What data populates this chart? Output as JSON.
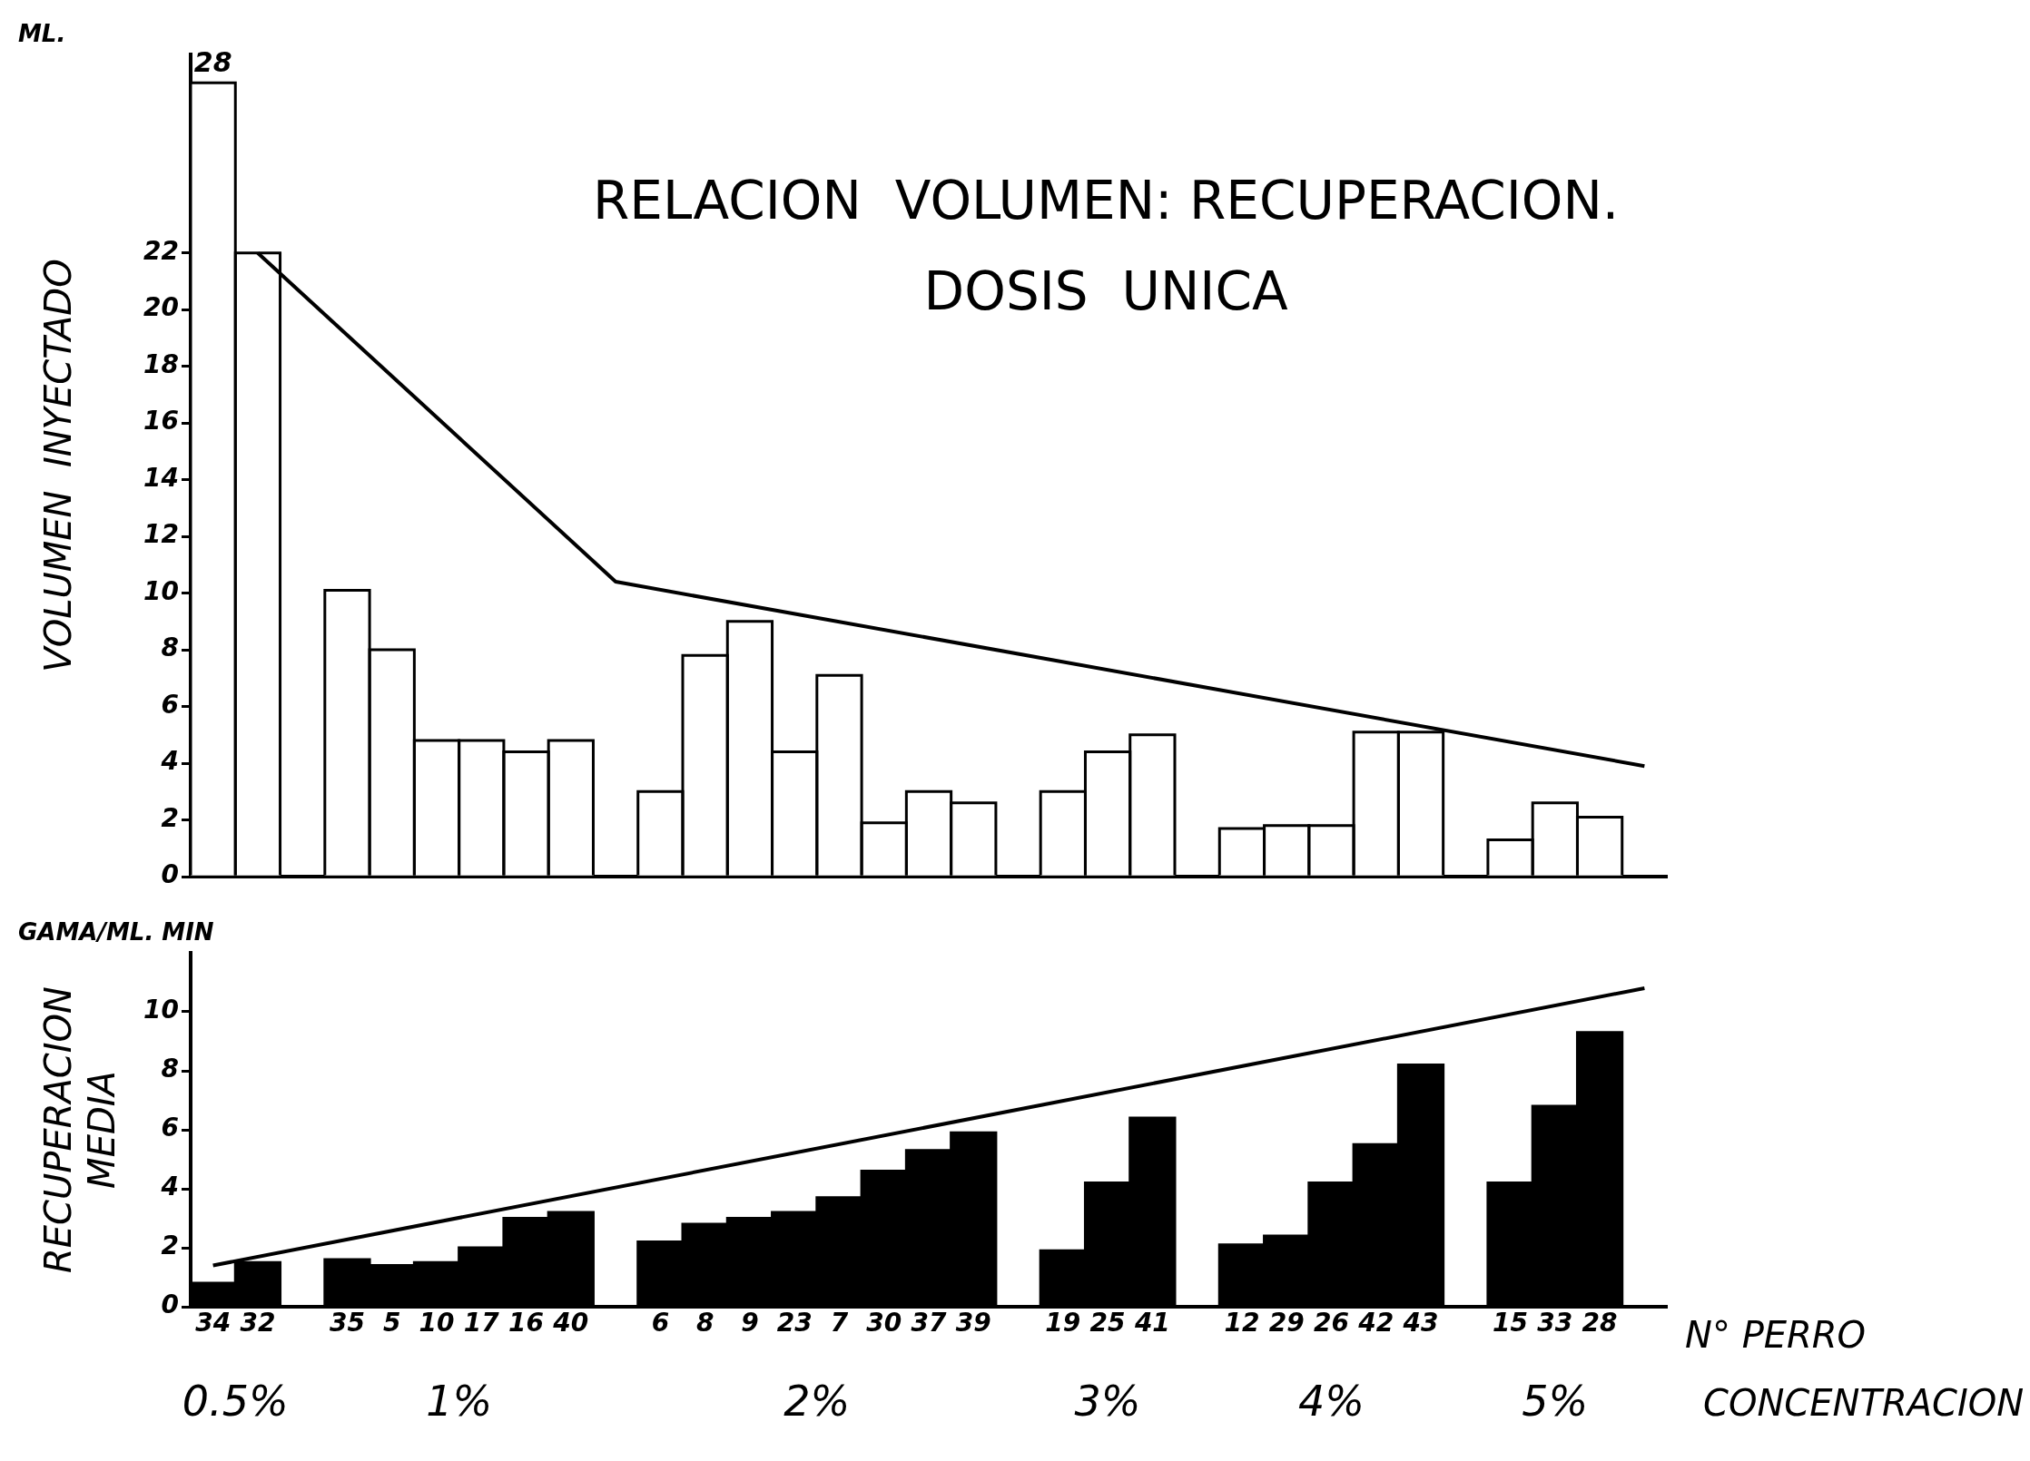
{
  "chart_data": [
    {
      "type": "bar",
      "title": "RELACION  VOLUMEN: RECUPERACION.",
      "subtitle": "DOSIS  UNICA",
      "ylabel": "VOLUMEN  INYECTADO",
      "categories": [
        "34",
        "32",
        null,
        "35",
        "5",
        "10",
        "17",
        "16",
        "40",
        null,
        "6",
        "8",
        "9",
        "23",
        "7",
        "30",
        "37",
        "39",
        null,
        "19",
        "25",
        "41",
        null,
        "12",
        "29",
        "26",
        "42",
        "43",
        null,
        "15",
        "33",
        "28",
        null
      ],
      "series": [
        {
          "color": "#ffffff",
          "values": [
            28,
            22,
            null,
            10.1,
            8,
            4.8,
            4.8,
            4.4,
            4.8,
            null,
            3,
            7.8,
            9,
            4.4,
            7.1,
            1.9,
            3,
            2.6,
            null,
            3,
            4.4,
            5,
            null,
            1.7,
            1.8,
            1.8,
            5.1,
            5.1,
            null,
            1.3,
            2.6,
            2.1,
            null
          ],
          "value_labels": [
            "28",
            null,
            null,
            null,
            null,
            null,
            null,
            null,
            null,
            null,
            null,
            null,
            null,
            null,
            null,
            null,
            null,
            null,
            null,
            null,
            null,
            null,
            null,
            null,
            null,
            null,
            null,
            null,
            null,
            null,
            null,
            null,
            null
          ]
        },
        {
          "type": "line",
          "color": "#000000",
          "marker": "none",
          "values": [
            null,
            22,
            null,
            null,
            null,
            null,
            null,
            null,
            null,
            10.4,
            null,
            null,
            null,
            null,
            null,
            null,
            null,
            null,
            null,
            null,
            null,
            null,
            null,
            null,
            null,
            null,
            null,
            null,
            null,
            null,
            null,
            null,
            3.9
          ]
        }
      ],
      "ylim": [
        0,
        29
      ],
      "yticks": [
        0,
        2,
        4,
        6,
        8,
        10,
        12,
        14,
        16,
        18,
        20,
        22
      ],
      "tick_labels": "y",
      "annotations": [
        "ML."
      ]
    },
    {
      "type": "bar",
      "ylabel": "RECUPERACION\nMEDIA",
      "xlabel": "N° PERRO",
      "categories": [
        "34",
        "32",
        null,
        "35",
        "5",
        "10",
        "17",
        "16",
        "40",
        null,
        "6",
        "8",
        "9",
        "23",
        "7",
        "30",
        "37",
        "39",
        null,
        "19",
        "25",
        "41",
        null,
        "12",
        "29",
        "26",
        "42",
        "43",
        null,
        "15",
        "33",
        "28",
        null
      ],
      "series": [
        {
          "color": "#000000",
          "values": [
            0.8,
            1.5,
            null,
            1.6,
            1.4,
            1.5,
            2,
            3,
            3.2,
            null,
            2.2,
            2.8,
            3,
            3.2,
            3.7,
            4.6,
            5.3,
            5.9,
            null,
            1.9,
            4.2,
            6.4,
            null,
            2.1,
            2.4,
            4.2,
            5.5,
            8.2,
            null,
            4.2,
            6.8,
            9.3,
            null
          ]
        },
        {
          "type": "line",
          "color": "#000000",
          "marker": "none",
          "values": [
            1.4,
            null,
            null,
            null,
            null,
            null,
            null,
            null,
            null,
            null,
            null,
            null,
            null,
            null,
            null,
            null,
            null,
            null,
            null,
            null,
            null,
            null,
            null,
            null,
            null,
            null,
            null,
            null,
            null,
            null,
            null,
            null,
            10.8
          ]
        }
      ],
      "ylim": [
        0,
        12
      ],
      "yticks": [
        0,
        2,
        4,
        6,
        8,
        10
      ],
      "annotations": [
        "GAMA/ML. MIN",
        "0.5%",
        "1%",
        "2%",
        "3%",
        "4%",
        "5%",
        "CONCENTRACION"
      ]
    }
  ]
}
